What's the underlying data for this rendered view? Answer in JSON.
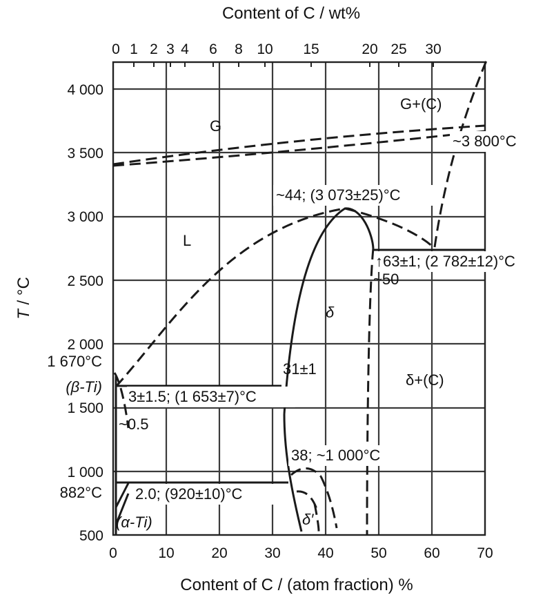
{
  "diagram": {
    "top_axis_title": "Content of C / wt%",
    "bottom_axis_title": "Content of  C / (atom fraction) %",
    "y_axis_title_main": "T",
    "y_axis_title_unit": " / °C",
    "top_ticks": [
      "0",
      "1",
      "2",
      "3",
      "4",
      "6",
      "8",
      "10",
      "15",
      "20",
      "25",
      "30"
    ],
    "bottom_ticks": [
      "0",
      "10",
      "20",
      "30",
      "40",
      "50",
      "60",
      "70"
    ],
    "y_ticks": [
      "500",
      "1 000",
      "1 500",
      "2 000",
      "2 500",
      "3 000",
      "3 500",
      "4 000"
    ],
    "labels": {
      "G": "G",
      "G_C": "G+(C)",
      "t3800": "~3 800°C",
      "eutectic_peak": "~44; (3 073±25)°C",
      "L": "L",
      "peritectic": "↑63±1; (2 782±12)°C",
      "fifty": "~50",
      "delta": "δ",
      "delta_C": "δ+(C)",
      "t1670": "1 670°C",
      "beta_ti": "(β-Ti)",
      "thirtyone": "31±1",
      "beta_eutectic": "3±1.5; (1 653±7)°C",
      "half": "~0.5",
      "order": "38; ~1 000°C",
      "t882": "882°C",
      "alpha_eutectoid": "2.0; (920±10)°C",
      "alpha_ti": "(α-Ti)",
      "delta_prime": "δ′"
    }
  }
}
